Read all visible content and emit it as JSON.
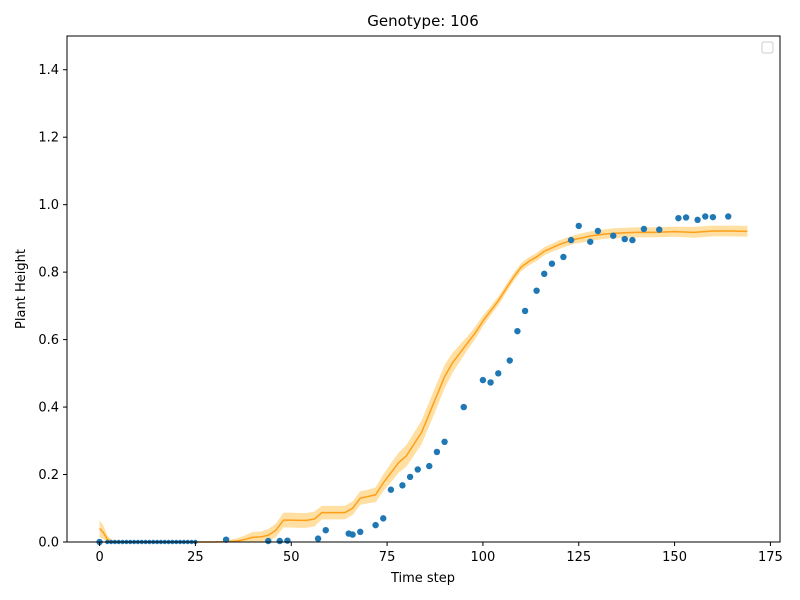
{
  "chart_data": {
    "type": "line",
    "title": "Genotype: 106",
    "xlabel": "Time step",
    "ylabel": "Plant Height",
    "xlim": [
      -8.5,
      177.5
    ],
    "ylim": [
      0.0,
      1.5
    ],
    "xticks": [
      "0",
      "25",
      "50",
      "75",
      "100",
      "125",
      "150",
      "175"
    ],
    "yticks": [
      "0.0",
      "0.2",
      "0.4",
      "0.6",
      "0.8",
      "1.0",
      "1.2",
      "1.4"
    ],
    "grid": false,
    "legend": {
      "placement": "top-right",
      "entries": []
    },
    "colors": {
      "points": "#1f77b4",
      "line": "#ff9f1a",
      "band": "#ffd27a"
    },
    "series": [
      {
        "kind": "scatter",
        "x": [
          0,
          2,
          3,
          4,
          5,
          6,
          7,
          8,
          9,
          10,
          11,
          12,
          13,
          14,
          15,
          16,
          17,
          18,
          19,
          20,
          21,
          22,
          23,
          24,
          25,
          33,
          44,
          47,
          49,
          57,
          59,
          65,
          66,
          68,
          72,
          74,
          76,
          79,
          81,
          83,
          86,
          88,
          90,
          95,
          100,
          102,
          104,
          107,
          109,
          111,
          114,
          116,
          118,
          121,
          123,
          125,
          128,
          130,
          134,
          137,
          139,
          142,
          146,
          151,
          153,
          156,
          158,
          160,
          164
        ],
        "y": [
          0.0,
          0.0,
          0.0,
          0.0,
          0.0,
          0.0,
          0.0,
          0.0,
          0.0,
          0.0,
          0.0,
          0.0,
          0.0,
          0.0,
          0.0,
          0.0,
          0.0,
          0.0,
          0.0,
          0.0,
          0.0,
          0.0,
          0.0,
          0.0,
          0.0,
          0.007,
          0.003,
          0.003,
          0.004,
          0.01,
          0.035,
          0.025,
          0.022,
          0.03,
          0.05,
          0.07,
          0.155,
          0.168,
          0.193,
          0.215,
          0.225,
          0.267,
          0.297,
          0.4,
          0.48,
          0.473,
          0.5,
          0.538,
          0.625,
          0.685,
          0.745,
          0.795,
          0.825,
          0.845,
          0.895,
          0.937,
          0.89,
          0.922,
          0.908,
          0.898,
          0.895,
          0.928,
          0.926,
          0.96,
          0.962,
          0.955,
          0.965,
          0.963,
          0.965
        ]
      },
      {
        "kind": "line_with_band",
        "x": [
          0,
          1,
          2,
          3,
          5,
          10,
          15,
          20,
          25,
          28,
          30,
          33,
          36,
          38,
          40,
          42,
          44,
          46,
          48,
          50,
          52,
          54,
          56,
          58,
          60,
          62,
          64,
          66,
          68,
          70,
          72,
          74,
          76,
          78,
          80,
          82,
          84,
          86,
          88,
          90,
          92,
          94,
          96,
          98,
          100,
          102,
          104,
          106,
          108,
          110,
          112,
          114,
          116,
          118,
          120,
          122,
          124,
          126,
          128,
          130,
          132,
          134,
          136,
          138,
          140,
          145,
          150,
          155,
          160,
          165,
          169
        ],
        "y": [
          0.04,
          0.028,
          0.008,
          0.002,
          0.0,
          0.0,
          0.0,
          0.0,
          0.0,
          0.0,
          0.0,
          0.001,
          0.003,
          0.008,
          0.014,
          0.015,
          0.02,
          0.035,
          0.065,
          0.065,
          0.064,
          0.064,
          0.068,
          0.087,
          0.087,
          0.087,
          0.087,
          0.1,
          0.13,
          0.135,
          0.14,
          0.175,
          0.205,
          0.235,
          0.255,
          0.29,
          0.325,
          0.38,
          0.435,
          0.49,
          0.53,
          0.56,
          0.59,
          0.62,
          0.655,
          0.685,
          0.715,
          0.75,
          0.785,
          0.815,
          0.832,
          0.845,
          0.862,
          0.872,
          0.882,
          0.89,
          0.897,
          0.902,
          0.907,
          0.91,
          0.913,
          0.915,
          0.916,
          0.917,
          0.918,
          0.918,
          0.92,
          0.918,
          0.922,
          0.922,
          0.921
        ],
        "band": [
          0.025,
          0.02,
          0.012,
          0.006,
          0.002,
          0.0,
          0.0,
          0.0,
          0.0,
          0.0,
          0.001,
          0.004,
          0.008,
          0.012,
          0.016,
          0.016,
          0.018,
          0.02,
          0.022,
          0.022,
          0.022,
          0.022,
          0.022,
          0.02,
          0.02,
          0.02,
          0.02,
          0.02,
          0.02,
          0.02,
          0.022,
          0.025,
          0.028,
          0.03,
          0.032,
          0.034,
          0.035,
          0.036,
          0.036,
          0.035,
          0.03,
          0.025,
          0.02,
          0.018,
          0.016,
          0.014,
          0.013,
          0.012,
          0.012,
          0.012,
          0.012,
          0.012,
          0.012,
          0.012,
          0.013,
          0.013,
          0.013,
          0.014,
          0.014,
          0.014,
          0.014,
          0.015,
          0.015,
          0.015,
          0.015,
          0.015,
          0.015,
          0.016,
          0.016,
          0.016,
          0.016
        ]
      }
    ]
  }
}
